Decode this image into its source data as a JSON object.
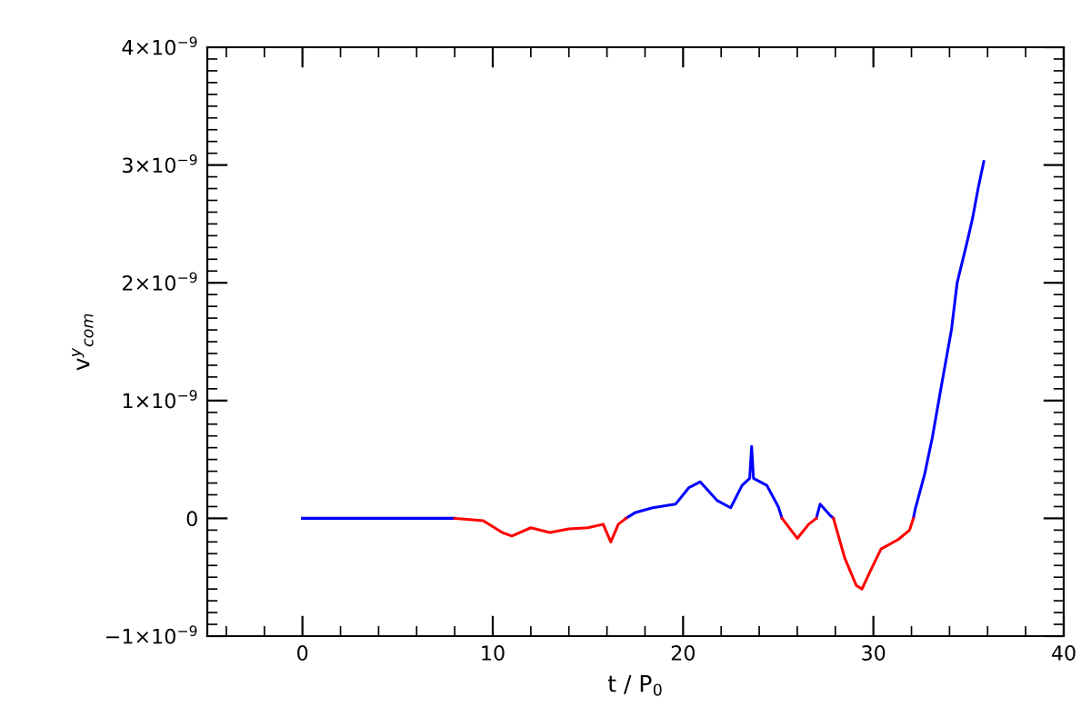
{
  "chart_data": {
    "type": "line",
    "xlabel": "t / P$_{0}$",
    "ylabel": "v$^{y}$$_{com}$",
    "xlim": [
      -5,
      40
    ],
    "xticks": [
      0,
      10,
      20,
      30,
      40
    ],
    "ylim": [
      -1e-09,
      4e-09
    ],
    "yticks": [
      {
        "value": -1e-09,
        "label": "−1×10$^{−9}$"
      },
      0,
      {
        "value": 1e-09,
        "label": "1×10$^{−9}$"
      },
      {
        "value": 2e-09,
        "label": "2×10$^{−9}$"
      },
      {
        "value": 3e-09,
        "label": "3×10$^{−9}$"
      },
      {
        "value": 4e-09,
        "label": "4×10$^{−9}$"
      }
    ],
    "grid": false,
    "legend": false,
    "marker": "none",
    "line_style": "solid",
    "series": [
      {
        "color": "#0000ff",
        "x": [
          0,
          8,
          8.5,
          17,
          17.5,
          18.4,
          19.6,
          20.3,
          20.9,
          21.8,
          22.5,
          23.1,
          23.5,
          23.6,
          23.7,
          24.4,
          25.0,
          25.2,
          26,
          27,
          27.2,
          27.7,
          27.9,
          30,
          32.1,
          32.2,
          32.7,
          33.1,
          33.6,
          34.1,
          34.4,
          34.9,
          35.2,
          35.5,
          35.8
        ],
        "values": [
          0,
          0,
          null,
          0,
          5e-11,
          9e-11,
          1.2e-10,
          2.6e-10,
          3.1e-10,
          1.5e-10,
          9e-11,
          2.8e-10,
          3.4e-10,
          6.1e-10,
          3.4e-10,
          2.8e-10,
          1e-10,
          0,
          null,
          0,
          1.2e-10,
          3e-11,
          0,
          null,
          0,
          8e-11,
          3.8e-10,
          6.9e-10,
          1.15e-09,
          1.6e-09,
          2e-09,
          2.33e-09,
          2.54e-09,
          2.8e-09,
          3.03e-09
        ]
      },
      {
        "color": "#ff0000",
        "x": [
          8,
          9.5,
          10.5,
          11,
          12,
          13,
          14,
          15,
          15.8,
          16.2,
          16.6,
          17,
          20,
          25.2,
          26,
          26.6,
          27,
          27.5,
          27.9,
          28.5,
          29.1,
          29.4,
          29.8,
          30.4,
          31.3,
          31.9,
          32.1
        ],
        "values": [
          0,
          -2e-11,
          -1.2e-10,
          -1.5e-10,
          -8e-11,
          -1.2e-10,
          -9e-11,
          -8e-11,
          -5e-11,
          -2e-10,
          -5e-11,
          0,
          null,
          0,
          -1.7e-10,
          -5e-11,
          0,
          null,
          0,
          -3.4e-10,
          -5.7e-10,
          -6e-10,
          -4.6e-10,
          -2.6e-10,
          -1.8e-10,
          -1e-10,
          0
        ]
      }
    ]
  }
}
